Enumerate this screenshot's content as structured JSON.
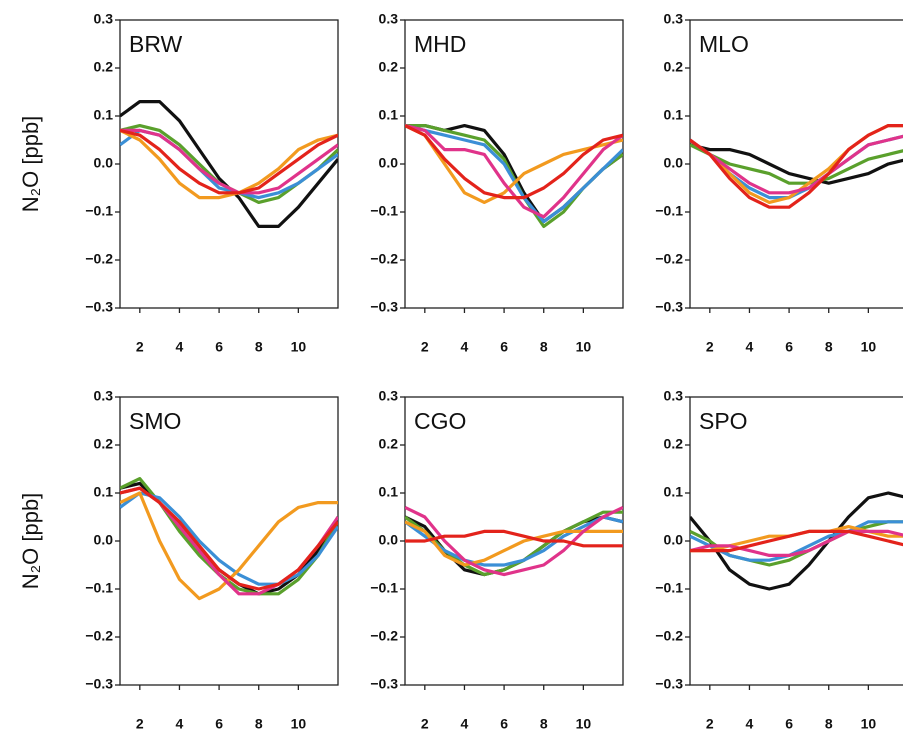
{
  "chart_data": [
    {
      "type": "line",
      "title": "BRW",
      "ylabel": "N₂O [ppb]",
      "x": [
        1,
        2,
        3,
        4,
        5,
        6,
        7,
        8,
        9,
        10,
        11,
        12
      ],
      "xlim": [
        1,
        12
      ],
      "xticks": [
        2,
        4,
        6,
        8,
        10
      ],
      "ylim": [
        -0.3,
        0.3
      ],
      "yticks": [
        {
          "value": -0.3,
          "label": "−0.3"
        },
        {
          "value": -0.2,
          "label": "−0.2"
        },
        {
          "value": -0.1,
          "label": "−0.1"
        },
        {
          "value": 0,
          "label": "0.0"
        },
        0.1,
        0.2,
        0.3
      ],
      "series": [
        {
          "color": "#111111",
          "values": [
            0.1,
            0.13,
            0.13,
            0.09,
            0.03,
            -0.03,
            -0.07,
            -0.13,
            -0.13,
            -0.09,
            -0.04,
            0.01
          ]
        },
        {
          "color": "#5aa02c",
          "values": [
            0.07,
            0.08,
            0.07,
            0.04,
            0.0,
            -0.04,
            -0.06,
            -0.08,
            -0.07,
            -0.04,
            -0.01,
            0.03
          ]
        },
        {
          "color": "#3b8fd6",
          "values": [
            0.04,
            0.07,
            0.06,
            0.03,
            -0.01,
            -0.05,
            -0.06,
            -0.07,
            -0.06,
            -0.04,
            -0.01,
            0.02
          ]
        },
        {
          "color": "#f29a1f",
          "values": [
            0.07,
            0.05,
            0.01,
            -0.04,
            -0.07,
            -0.07,
            -0.06,
            -0.04,
            -0.01,
            0.03,
            0.05,
            0.06
          ]
        },
        {
          "color": "#e0338a",
          "values": [
            0.07,
            0.07,
            0.06,
            0.03,
            -0.01,
            -0.04,
            -0.06,
            -0.06,
            -0.05,
            -0.02,
            0.01,
            0.04
          ]
        },
        {
          "color": "#e3231b",
          "values": [
            0.07,
            0.06,
            0.03,
            -0.01,
            -0.04,
            -0.06,
            -0.06,
            -0.05,
            -0.02,
            0.01,
            0.04,
            0.06
          ]
        }
      ]
    },
    {
      "type": "line",
      "title": "MHD",
      "x": [
        1,
        2,
        3,
        4,
        5,
        6,
        7,
        8,
        9,
        10,
        11,
        12
      ],
      "xlim": [
        1,
        12
      ],
      "xticks": [
        2,
        4,
        6,
        8,
        10
      ],
      "ylim": [
        -0.3,
        0.3
      ],
      "yticks": [
        {
          "value": -0.3,
          "label": "−0.3"
        },
        {
          "value": -0.2,
          "label": "−0.2"
        },
        {
          "value": -0.1,
          "label": "−0.1"
        },
        {
          "value": 0,
          "label": "0.0"
        },
        0.1,
        0.2,
        0.3
      ],
      "series": [
        {
          "color": "#111111",
          "values": [
            0.08,
            0.08,
            0.07,
            0.08,
            0.07,
            0.02,
            -0.06,
            -0.12,
            -0.09,
            -0.05,
            -0.01,
            0.02
          ]
        },
        {
          "color": "#5aa02c",
          "values": [
            0.08,
            0.08,
            0.07,
            0.06,
            0.05,
            0.01,
            -0.07,
            -0.13,
            -0.1,
            -0.05,
            -0.01,
            0.02
          ]
        },
        {
          "color": "#3b8fd6",
          "values": [
            0.08,
            0.07,
            0.06,
            0.05,
            0.04,
            0.0,
            -0.07,
            -0.12,
            -0.09,
            -0.05,
            -0.01,
            0.03
          ]
        },
        {
          "color": "#f29a1f",
          "values": [
            0.08,
            0.06,
            0.0,
            -0.06,
            -0.08,
            -0.06,
            -0.02,
            0.0,
            0.02,
            0.03,
            0.04,
            0.05
          ]
        },
        {
          "color": "#e0338a",
          "values": [
            0.08,
            0.07,
            0.03,
            0.03,
            0.02,
            -0.04,
            -0.09,
            -0.11,
            -0.07,
            -0.02,
            0.03,
            0.06
          ]
        },
        {
          "color": "#e3231b",
          "values": [
            0.08,
            0.06,
            0.01,
            -0.03,
            -0.06,
            -0.07,
            -0.07,
            -0.05,
            -0.02,
            0.02,
            0.05,
            0.06
          ]
        }
      ]
    },
    {
      "type": "line",
      "title": "MLO",
      "x": [
        1,
        2,
        3,
        4,
        5,
        6,
        7,
        8,
        9,
        10,
        11,
        12
      ],
      "xlim": [
        1,
        12
      ],
      "xticks": [
        2,
        4,
        6,
        8,
        10
      ],
      "ylim": [
        -0.3,
        0.3
      ],
      "yticks": [
        {
          "value": -0.3,
          "label": "−0.3"
        },
        {
          "value": -0.2,
          "label": "−0.2"
        },
        {
          "value": -0.1,
          "label": "−0.1"
        },
        {
          "value": 0,
          "label": "0.0"
        },
        0.1,
        0.2,
        0.3
      ],
      "series": [
        {
          "color": "#111111",
          "values": [
            0.04,
            0.03,
            0.03,
            0.02,
            0.0,
            -0.02,
            -0.03,
            -0.04,
            -0.03,
            -0.02,
            0.0,
            0.01
          ]
        },
        {
          "color": "#5aa02c",
          "values": [
            0.04,
            0.02,
            0.0,
            -0.01,
            -0.02,
            -0.04,
            -0.04,
            -0.03,
            -0.01,
            0.01,
            0.02,
            0.03
          ]
        },
        {
          "color": "#3b8fd6",
          "values": [
            0.05,
            0.02,
            -0.02,
            -0.05,
            -0.07,
            -0.07,
            -0.05,
            -0.02,
            0.01,
            0.04,
            0.05,
            0.06
          ]
        },
        {
          "color": "#f29a1f",
          "values": [
            0.05,
            0.02,
            -0.02,
            -0.06,
            -0.08,
            -0.07,
            -0.04,
            -0.01,
            0.03,
            0.06,
            0.08,
            0.08
          ]
        },
        {
          "color": "#e0338a",
          "values": [
            0.05,
            0.02,
            -0.01,
            -0.04,
            -0.06,
            -0.06,
            -0.05,
            -0.02,
            0.01,
            0.04,
            0.05,
            0.06
          ]
        },
        {
          "color": "#e3231b",
          "values": [
            0.05,
            0.02,
            -0.03,
            -0.07,
            -0.09,
            -0.09,
            -0.06,
            -0.02,
            0.03,
            0.06,
            0.08,
            0.08
          ]
        }
      ]
    },
    {
      "type": "line",
      "title": "SMO",
      "ylabel": "N₂O [ppb]",
      "x": [
        1,
        2,
        3,
        4,
        5,
        6,
        7,
        8,
        9,
        10,
        11,
        12
      ],
      "xlim": [
        1,
        12
      ],
      "xticks": [
        2,
        4,
        6,
        8,
        10
      ],
      "ylim": [
        -0.3,
        0.3
      ],
      "yticks": [
        {
          "value": -0.3,
          "label": "−0.3"
        },
        {
          "value": -0.2,
          "label": "−0.2"
        },
        {
          "value": -0.1,
          "label": "−0.1"
        },
        {
          "value": 0,
          "label": "0.0"
        },
        0.1,
        0.2,
        0.3
      ],
      "series": [
        {
          "color": "#111111",
          "values": [
            0.11,
            0.12,
            0.08,
            0.03,
            -0.02,
            -0.06,
            -0.09,
            -0.11,
            -0.1,
            -0.07,
            -0.02,
            0.05
          ]
        },
        {
          "color": "#5aa02c",
          "values": [
            0.11,
            0.13,
            0.08,
            0.02,
            -0.03,
            -0.07,
            -0.1,
            -0.11,
            -0.11,
            -0.08,
            -0.03,
            0.04
          ]
        },
        {
          "color": "#3b8fd6",
          "values": [
            0.07,
            0.1,
            0.09,
            0.05,
            0.0,
            -0.04,
            -0.07,
            -0.09,
            -0.09,
            -0.07,
            -0.03,
            0.03
          ]
        },
        {
          "color": "#f29a1f",
          "values": [
            0.08,
            0.1,
            0.0,
            -0.08,
            -0.12,
            -0.1,
            -0.06,
            -0.01,
            0.04,
            0.07,
            0.08,
            0.08
          ]
        },
        {
          "color": "#e0338a",
          "values": [
            0.1,
            0.11,
            0.08,
            0.03,
            -0.02,
            -0.07,
            -0.11,
            -0.11,
            -0.09,
            -0.06,
            -0.01,
            0.05
          ]
        },
        {
          "color": "#e3231b",
          "values": [
            0.1,
            0.11,
            0.08,
            0.04,
            -0.01,
            -0.06,
            -0.09,
            -0.1,
            -0.09,
            -0.06,
            -0.01,
            0.04
          ]
        }
      ]
    },
    {
      "type": "line",
      "title": "CGO",
      "x": [
        1,
        2,
        3,
        4,
        5,
        6,
        7,
        8,
        9,
        10,
        11,
        12
      ],
      "xlim": [
        1,
        12
      ],
      "xticks": [
        2,
        4,
        6,
        8,
        10
      ],
      "ylim": [
        -0.3,
        0.3
      ],
      "yticks": [
        {
          "value": -0.3,
          "label": "−0.3"
        },
        {
          "value": -0.2,
          "label": "−0.2"
        },
        {
          "value": -0.1,
          "label": "−0.1"
        },
        {
          "value": 0,
          "label": "0.0"
        },
        0.1,
        0.2,
        0.3
      ],
      "series": [
        {
          "color": "#111111",
          "values": [
            0.05,
            0.03,
            -0.02,
            -0.06,
            -0.07,
            -0.06,
            -0.04,
            -0.01,
            0.02,
            0.04,
            0.05,
            0.04
          ]
        },
        {
          "color": "#5aa02c",
          "values": [
            0.05,
            0.02,
            -0.02,
            -0.05,
            -0.07,
            -0.06,
            -0.04,
            -0.01,
            0.02,
            0.04,
            0.06,
            0.06
          ]
        },
        {
          "color": "#3b8fd6",
          "values": [
            0.04,
            0.01,
            -0.02,
            -0.04,
            -0.05,
            -0.05,
            -0.04,
            -0.02,
            0.01,
            0.03,
            0.05,
            0.04
          ]
        },
        {
          "color": "#f29a1f",
          "values": [
            0.04,
            0.02,
            -0.03,
            -0.05,
            -0.04,
            -0.02,
            0.0,
            0.01,
            0.02,
            0.02,
            0.02,
            0.02
          ]
        },
        {
          "color": "#e0338a",
          "values": [
            0.07,
            0.05,
            0.0,
            -0.04,
            -0.06,
            -0.07,
            -0.06,
            -0.05,
            -0.02,
            0.02,
            0.05,
            0.07
          ]
        },
        {
          "color": "#e3231b",
          "values": [
            0.0,
            0.0,
            0.01,
            0.01,
            0.02,
            0.02,
            0.01,
            0.0,
            0.0,
            -0.01,
            -0.01,
            -0.01
          ]
        }
      ]
    },
    {
      "type": "line",
      "title": "SPO",
      "x": [
        1,
        2,
        3,
        4,
        5,
        6,
        7,
        8,
        9,
        10,
        11,
        12
      ],
      "xlim": [
        1,
        12
      ],
      "xticks": [
        2,
        4,
        6,
        8,
        10
      ],
      "ylim": [
        -0.3,
        0.3
      ],
      "yticks": [
        {
          "value": -0.3,
          "label": "−0.3"
        },
        {
          "value": -0.2,
          "label": "−0.2"
        },
        {
          "value": -0.1,
          "label": "−0.1"
        },
        {
          "value": 0,
          "label": "0.0"
        },
        0.1,
        0.2,
        0.3
      ],
      "series": [
        {
          "color": "#111111",
          "values": [
            0.05,
            0.0,
            -0.06,
            -0.09,
            -0.1,
            -0.09,
            -0.05,
            0.0,
            0.05,
            0.09,
            0.1,
            0.09
          ]
        },
        {
          "color": "#5aa02c",
          "values": [
            0.02,
            0.0,
            -0.03,
            -0.04,
            -0.05,
            -0.04,
            -0.02,
            0.0,
            0.02,
            0.03,
            0.04,
            0.04
          ]
        },
        {
          "color": "#3b8fd6",
          "values": [
            0.01,
            -0.01,
            -0.03,
            -0.04,
            -0.04,
            -0.03,
            -0.01,
            0.01,
            0.02,
            0.04,
            0.04,
            0.04
          ]
        },
        {
          "color": "#f29a1f",
          "values": [
            -0.02,
            -0.02,
            -0.01,
            0.0,
            0.01,
            0.01,
            0.02,
            0.02,
            0.03,
            0.02,
            0.01,
            0.01
          ]
        },
        {
          "color": "#e0338a",
          "values": [
            -0.02,
            -0.01,
            -0.01,
            -0.02,
            -0.03,
            -0.03,
            -0.02,
            0.0,
            0.02,
            0.02,
            0.02,
            0.01
          ]
        },
        {
          "color": "#e3231b",
          "values": [
            -0.02,
            -0.02,
            -0.02,
            -0.01,
            0.0,
            0.01,
            0.02,
            0.02,
            0.02,
            0.01,
            0.0,
            -0.01
          ]
        }
      ]
    }
  ]
}
